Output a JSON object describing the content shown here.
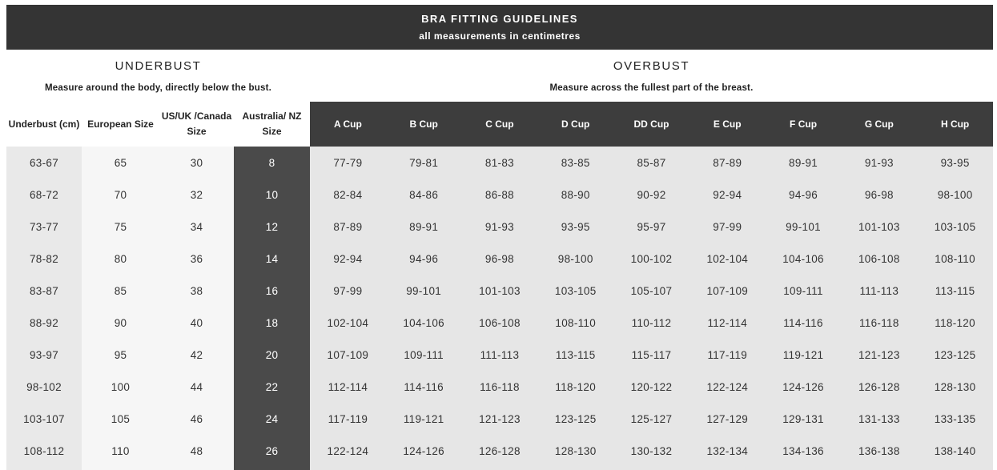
{
  "banner": {
    "title": "BRA FITTING GUIDELINES",
    "subtitle": "all measurements in centimetres"
  },
  "sections": {
    "underbust": {
      "title": "UNDERBUST",
      "description": "Measure around the body, directly below the bust."
    },
    "overbust": {
      "title": "OVERBUST",
      "description": "Measure across the fullest part of the breast."
    }
  },
  "table": {
    "columns": [
      {
        "label": "Underbust (cm)",
        "group": "underbust"
      },
      {
        "label": "European Size",
        "group": "underbust"
      },
      {
        "label": "US/UK /Canada Size",
        "group": "underbust"
      },
      {
        "label": "Australia/ NZ Size",
        "group": "underbust"
      },
      {
        "label": "A Cup",
        "group": "overbust"
      },
      {
        "label": "B Cup",
        "group": "overbust"
      },
      {
        "label": "C Cup",
        "group": "overbust"
      },
      {
        "label": "D Cup",
        "group": "overbust"
      },
      {
        "label": "DD Cup",
        "group": "overbust"
      },
      {
        "label": "E Cup",
        "group": "overbust"
      },
      {
        "label": "F Cup",
        "group": "overbust"
      },
      {
        "label": "G Cup",
        "group": "overbust"
      },
      {
        "label": "H Cup",
        "group": "overbust"
      }
    ],
    "rows": [
      [
        "63-67",
        "65",
        "30",
        "8",
        "77-79",
        "79-81",
        "81-83",
        "83-85",
        "85-87",
        "87-89",
        "89-91",
        "91-93",
        "93-95"
      ],
      [
        "68-72",
        "70",
        "32",
        "10",
        "82-84",
        "84-86",
        "86-88",
        "88-90",
        "90-92",
        "92-94",
        "94-96",
        "96-98",
        "98-100"
      ],
      [
        "73-77",
        "75",
        "34",
        "12",
        "87-89",
        "89-91",
        "91-93",
        "93-95",
        "95-97",
        "97-99",
        "99-101",
        "101-103",
        "103-105"
      ],
      [
        "78-82",
        "80",
        "36",
        "14",
        "92-94",
        "94-96",
        "96-98",
        "98-100",
        "100-102",
        "102-104",
        "104-106",
        "106-108",
        "108-110"
      ],
      [
        "83-87",
        "85",
        "38",
        "16",
        "97-99",
        "99-101",
        "101-103",
        "103-105",
        "105-107",
        "107-109",
        "109-111",
        "111-113",
        "113-115"
      ],
      [
        "88-92",
        "90",
        "40",
        "18",
        "102-104",
        "104-106",
        "106-108",
        "108-110",
        "110-112",
        "112-114",
        "114-116",
        "116-118",
        "118-120"
      ],
      [
        "93-97",
        "95",
        "42",
        "20",
        "107-109",
        "109-111",
        "111-113",
        "113-115",
        "115-117",
        "117-119",
        "119-121",
        "121-123",
        "123-125"
      ],
      [
        "98-102",
        "100",
        "44",
        "22",
        "112-114",
        "114-116",
        "116-118",
        "118-120",
        "120-122",
        "122-124",
        "124-126",
        "126-128",
        "128-130"
      ],
      [
        "103-107",
        "105",
        "46",
        "24",
        "117-119",
        "119-121",
        "121-123",
        "123-125",
        "125-127",
        "127-129",
        "129-131",
        "131-133",
        "133-135"
      ],
      [
        "108-112",
        "110",
        "48",
        "26",
        "122-124",
        "124-126",
        "126-128",
        "128-130",
        "130-132",
        "132-134",
        "134-136",
        "136-138",
        "138-140"
      ]
    ]
  },
  "colors": {
    "banner_bg": "#343434",
    "cup_header_bg": "#3d3d3d",
    "au_nz_column_bg": "#4a4a4a",
    "underbust_column_bg": "#e9e9e9",
    "size_columns_bg": "#f6f6f6",
    "cup_columns_bg": "#e6e6e6",
    "text_dark": "#333333",
    "text_light": "#ffffff"
  }
}
